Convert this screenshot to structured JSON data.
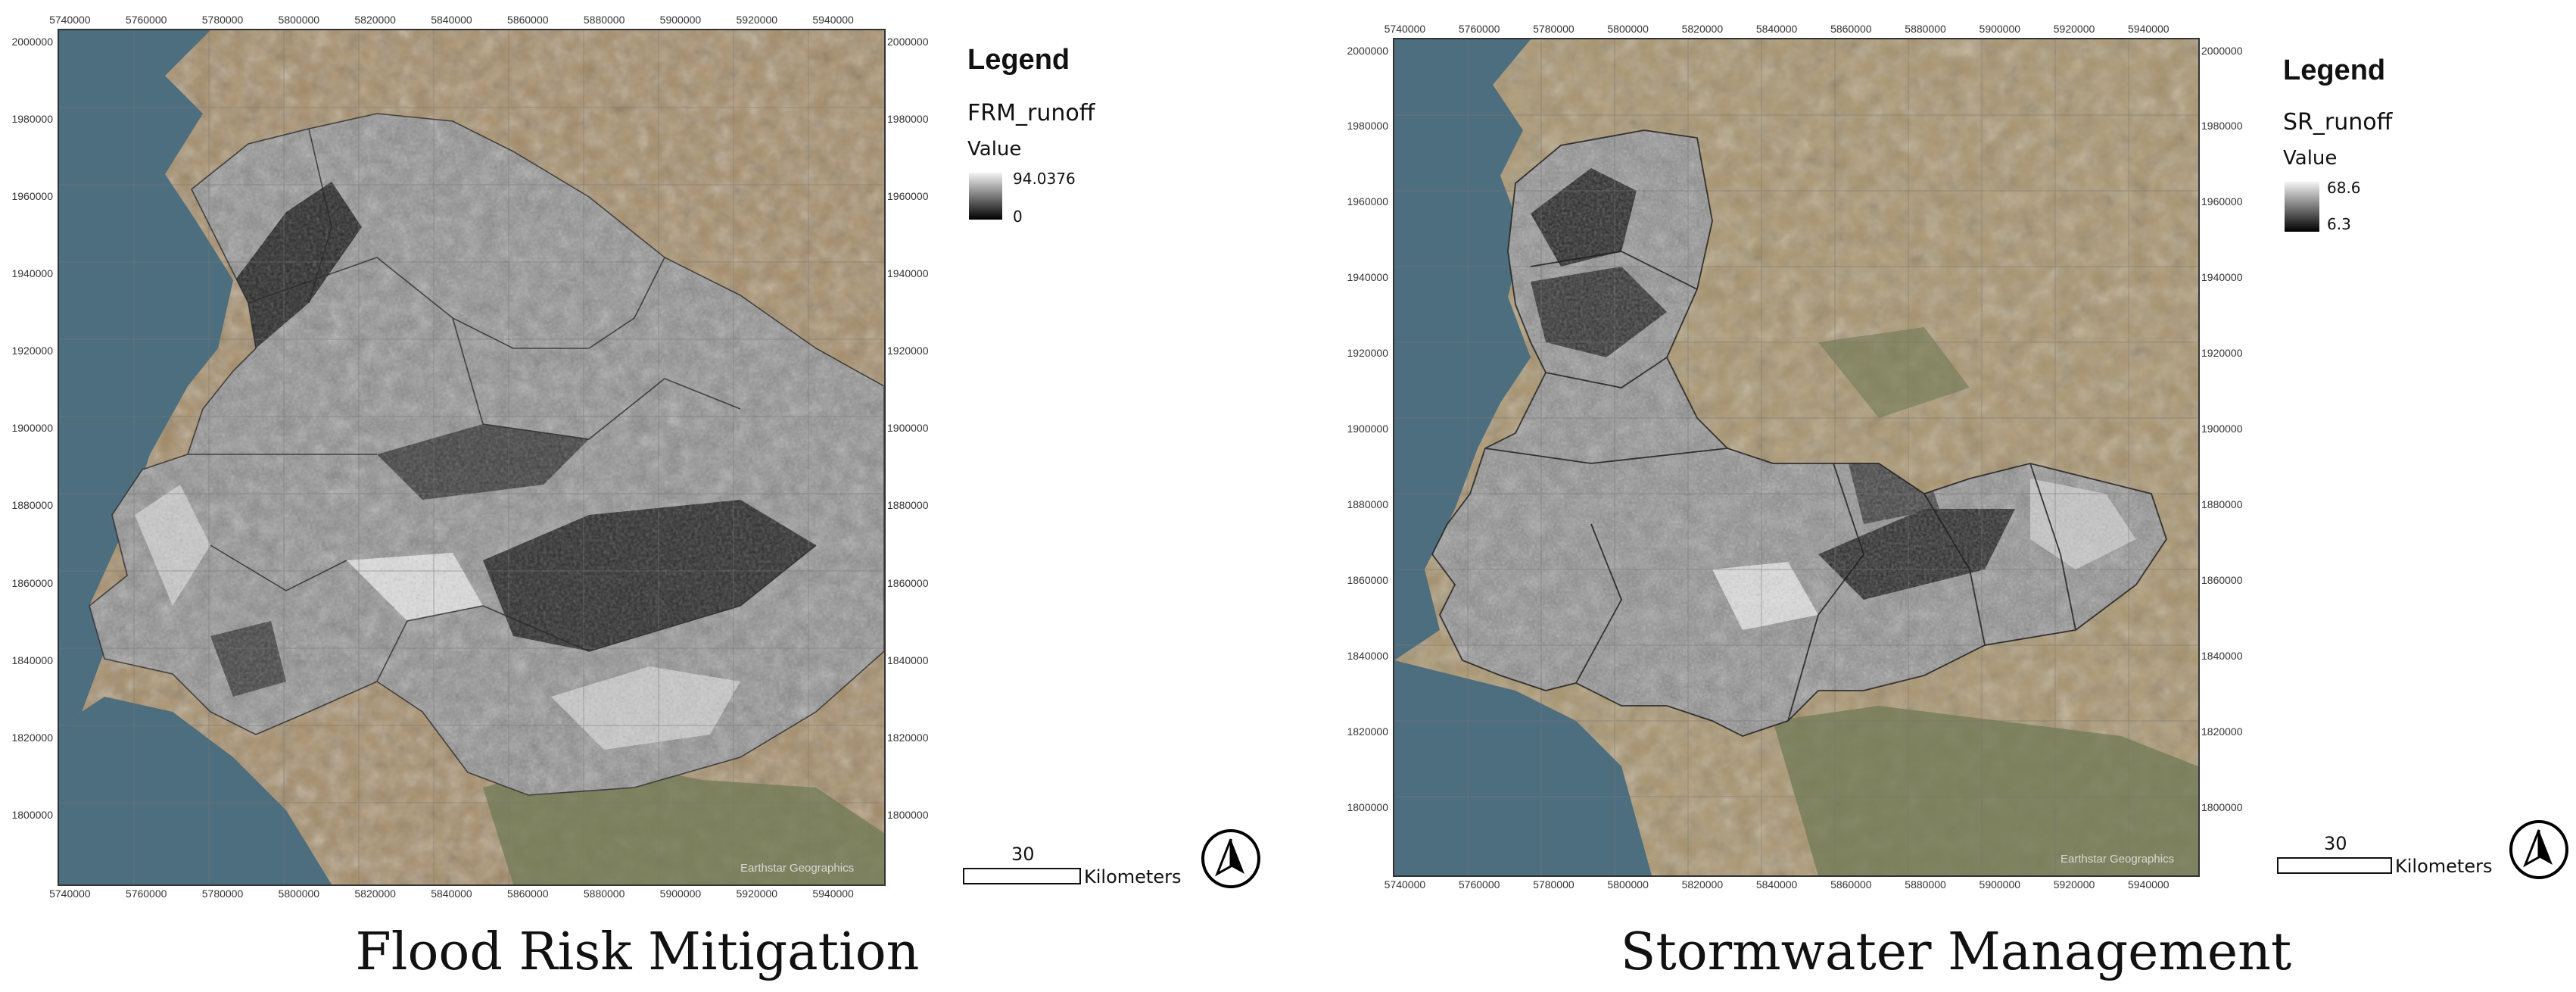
{
  "maps": [
    {
      "id": "left",
      "caption": "Flood Risk Mitigation",
      "legend": {
        "title": "Legend",
        "layer": "FRM_runoff",
        "value_label": "Value",
        "max": "94.0376",
        "min": "0"
      },
      "scale": {
        "distance": "30",
        "unit": "Kilometers"
      },
      "x_ticks_top": [
        "5740000",
        "5760000",
        "5780000",
        "5800000",
        "5820000",
        "5840000",
        "5860000",
        "5880000",
        "5900000",
        "5920000",
        "5940000"
      ],
      "x_ticks_bottom": [
        "5740000",
        "5760000",
        "5780000",
        "5800000",
        "5820000",
        "5840000",
        "5860000",
        "5880000",
        "5900000",
        "5920000",
        "5940000"
      ],
      "y_ticks_left": [
        "2000000",
        "1980000",
        "1960000",
        "1940000",
        "1920000",
        "1900000",
        "1880000",
        "1860000",
        "1840000",
        "1820000",
        "1800000"
      ],
      "y_ticks_right": [
        "2000000",
        "1980000",
        "1960000",
        "1940000",
        "1920000",
        "1900000",
        "1880000",
        "1860000",
        "1840000",
        "1820000",
        "1800000"
      ],
      "attribution": "Earthstar Geographics"
    },
    {
      "id": "right",
      "caption": "Stormwater Management",
      "legend": {
        "title": "Legend",
        "layer": "SR_runoff",
        "value_label": "Value",
        "max": "68.6",
        "min": "6.3"
      },
      "scale": {
        "distance": "30",
        "unit": "Kilometers"
      },
      "x_ticks_top": [
        "5740000",
        "5760000",
        "5780000",
        "5800000",
        "5820000",
        "5840000",
        "5860000",
        "5880000",
        "5900000",
        "5920000",
        "5940000"
      ],
      "x_ticks_bottom": [
        "5740000",
        "5760000",
        "5780000",
        "5800000",
        "5820000",
        "5840000",
        "5860000",
        "5880000",
        "5900000",
        "5920000",
        "5940000"
      ],
      "y_ticks_left": [
        "2000000",
        "1980000",
        "1960000",
        "1940000",
        "1920000",
        "1900000",
        "1880000",
        "1860000",
        "1840000",
        "1820000",
        "1800000"
      ],
      "y_ticks_right": [
        "2000000",
        "1980000",
        "1960000",
        "1940000",
        "1920000",
        "1900000",
        "1880000",
        "1860000",
        "1840000",
        "1820000",
        "1800000"
      ],
      "attribution": "Earthstar Geographics"
    }
  ],
  "colors": {
    "sea": "#4d6e7e",
    "land": "#a58c67",
    "land_green": "#6f7a55",
    "raster_dark": "#151515",
    "raster_light": "#d8d8d8"
  },
  "icons": [
    "north-arrow-icon"
  ]
}
